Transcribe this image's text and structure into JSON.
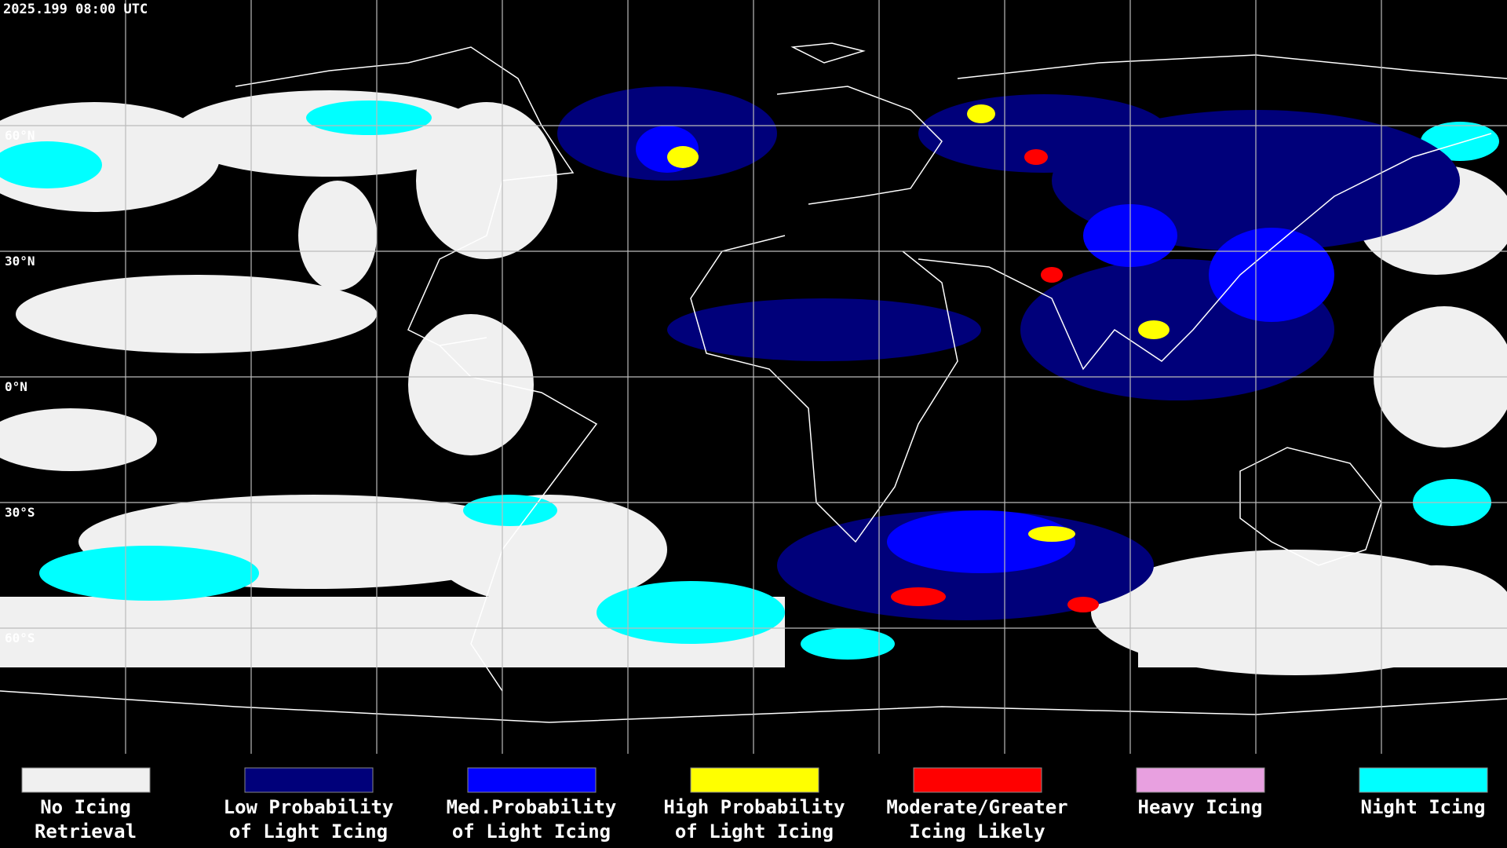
{
  "timestamp": "2025.199 08:00 UTC",
  "latitude_labels": [
    "60°N",
    "30°N",
    "0°N",
    "30°S",
    "60°S"
  ],
  "legend": {
    "items": [
      {
        "lines": [
          "No Icing",
          "Retrieval"
        ],
        "color": "#f0f0f0"
      },
      {
        "lines": [
          "Low Probability",
          "of Light Icing"
        ],
        "color": "#00007a"
      },
      {
        "lines": [
          "Med.Probability",
          "of Light Icing"
        ],
        "color": "#0000ff"
      },
      {
        "lines": [
          "High Probability",
          "of Light Icing"
        ],
        "color": "#ffff00"
      },
      {
        "lines": [
          "Moderate/Greater",
          "Icing Likely"
        ],
        "color": "#ff0000"
      },
      {
        "lines": [
          "Heavy Icing"
        ],
        "color": "#e8a0e0"
      },
      {
        "lines": [
          "Night Icing"
        ],
        "color": "#00ffff"
      }
    ]
  }
}
